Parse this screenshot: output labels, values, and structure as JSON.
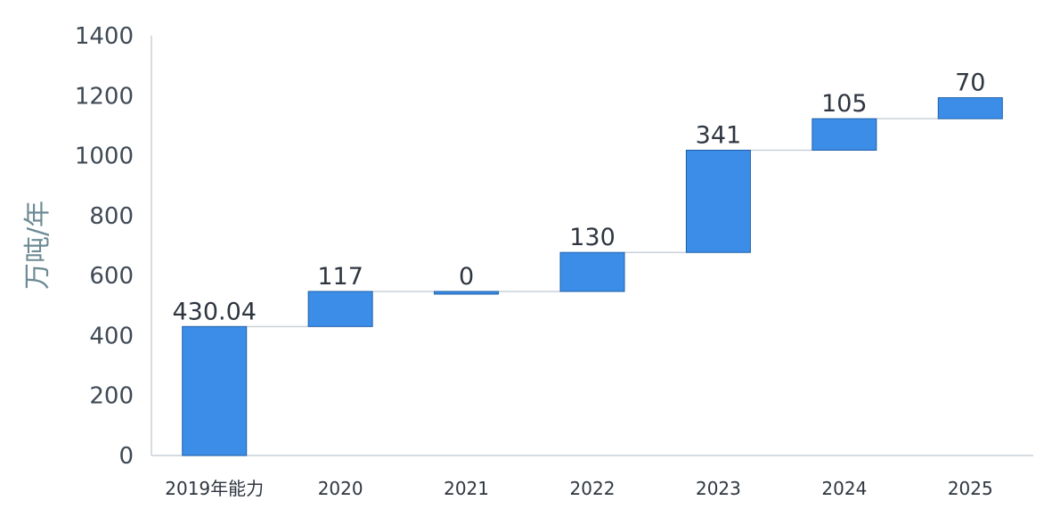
{
  "chart_data": {
    "type": "bar",
    "subtype": "waterfall",
    "categories": [
      "2019年能力",
      "2020",
      "2021",
      "2022",
      "2023",
      "2024",
      "2025"
    ],
    "values": [
      430.04,
      117,
      0,
      130,
      341,
      105,
      70
    ],
    "data_labels": [
      "430.04",
      "117",
      "0",
      "130",
      "341",
      "105",
      "70"
    ],
    "ylabel": "万吨/年",
    "ylim": [
      0,
      1400
    ],
    "yticks": [
      0,
      200,
      400,
      600,
      800,
      1000,
      1200,
      1400
    ],
    "grid": false,
    "legend": "none",
    "colors": {
      "bar": "#3b8de8",
      "bar_stroke": "#1f5fa8",
      "connector": "#c8d0d8",
      "axis": "#c8d0d8"
    }
  }
}
